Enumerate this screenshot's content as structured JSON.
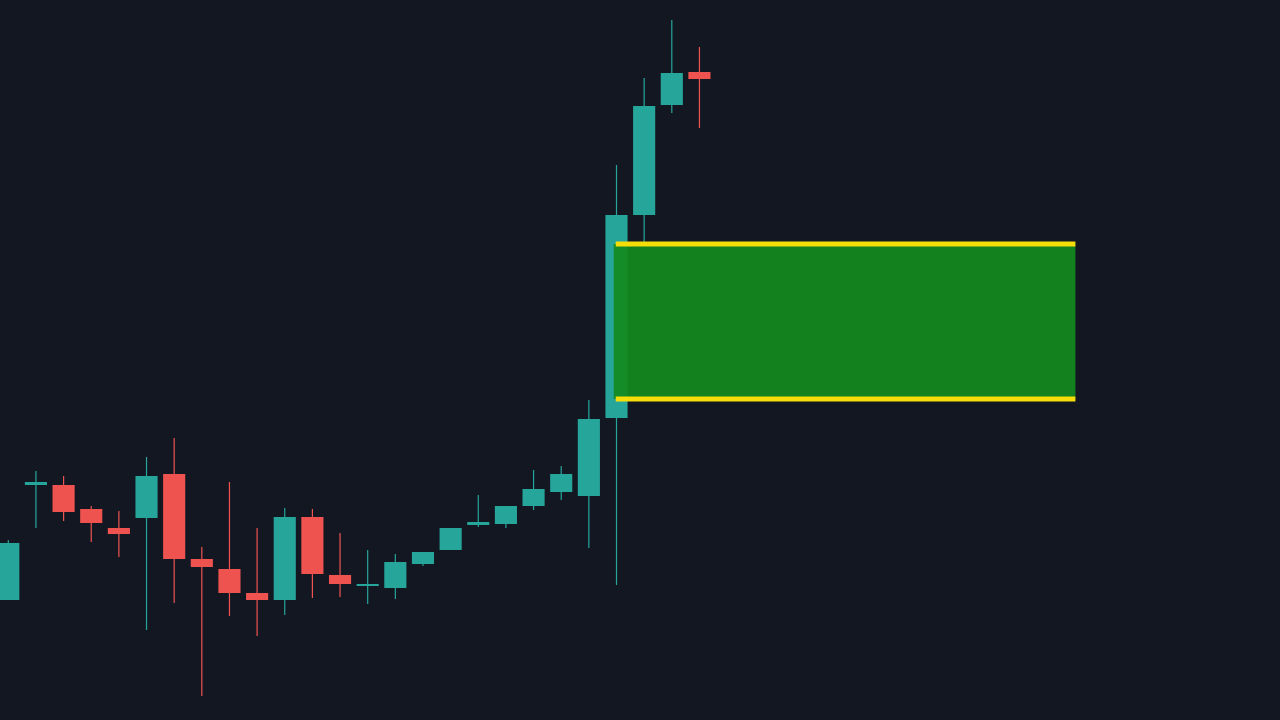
{
  "chart_data": {
    "type": "candlestick",
    "title": "",
    "xlabel": "",
    "ylabel": "",
    "axes_visible": false,
    "grid": false,
    "ylim": [
      2.4,
      70.0
    ],
    "xlim_bar_index": [
      -0.3,
      46.0
    ],
    "colors": {
      "background": "#131722",
      "up": "#26a69a",
      "down": "#ef5350",
      "zone_fill": "#138a1e",
      "zone_border": "#f5dd0a"
    },
    "candles": [
      {
        "o": 12.0,
        "h": 18.0,
        "l": 12.0,
        "c": 17.7
      },
      {
        "o": 23.5,
        "h": 24.9,
        "l": 19.2,
        "c": 23.8
      },
      {
        "o": 23.5,
        "h": 24.4,
        "l": 19.9,
        "c": 20.8
      },
      {
        "o": 21.1,
        "h": 21.4,
        "l": 17.8,
        "c": 19.7
      },
      {
        "o": 19.2,
        "h": 20.9,
        "l": 16.3,
        "c": 18.6
      },
      {
        "o": 20.2,
        "h": 26.3,
        "l": 9.0,
        "c": 24.4
      },
      {
        "o": 24.6,
        "h": 28.2,
        "l": 11.7,
        "c": 16.1
      },
      {
        "o": 16.1,
        "h": 17.3,
        "l": 2.4,
        "c": 15.3
      },
      {
        "o": 15.1,
        "h": 23.8,
        "l": 10.4,
        "c": 12.7
      },
      {
        "o": 12.7,
        "h": 19.2,
        "l": 8.4,
        "c": 12.0
      },
      {
        "o": 12.0,
        "h": 21.2,
        "l": 10.5,
        "c": 20.3
      },
      {
        "o": 20.3,
        "h": 21.1,
        "l": 12.2,
        "c": 14.6
      },
      {
        "o": 14.5,
        "h": 18.7,
        "l": 12.3,
        "c": 13.6
      },
      {
        "o": 13.4,
        "h": 17.0,
        "l": 11.6,
        "c": 13.6
      },
      {
        "o": 13.2,
        "h": 16.6,
        "l": 12.1,
        "c": 15.8
      },
      {
        "o": 15.6,
        "h": 16.8,
        "l": 15.4,
        "c": 16.8
      },
      {
        "o": 17.0,
        "h": 19.2,
        "l": 17.0,
        "c": 19.2
      },
      {
        "o": 19.5,
        "h": 22.5,
        "l": 19.3,
        "c": 19.8
      },
      {
        "o": 19.6,
        "h": 21.4,
        "l": 19.2,
        "c": 21.4
      },
      {
        "o": 21.4,
        "h": 25.0,
        "l": 21.0,
        "c": 23.1
      },
      {
        "o": 22.8,
        "h": 25.4,
        "l": 22.0,
        "c": 24.6
      },
      {
        "o": 22.4,
        "h": 32.0,
        "l": 17.2,
        "c": 30.1
      },
      {
        "o": 30.2,
        "h": 55.5,
        "l": 13.5,
        "c": 50.5
      },
      {
        "o": 50.5,
        "h": 64.2,
        "l": 47.7,
        "c": 61.4
      },
      {
        "o": 61.5,
        "h": 70.0,
        "l": 60.7,
        "c": 64.7
      },
      {
        "o": 64.8,
        "h": 67.3,
        "l": 59.2,
        "c": 64.1
      }
    ],
    "zone": {
      "top": 47.6,
      "bottom": 32.1,
      "start_bar": 21.9,
      "end_bar": 38.6
    }
  }
}
